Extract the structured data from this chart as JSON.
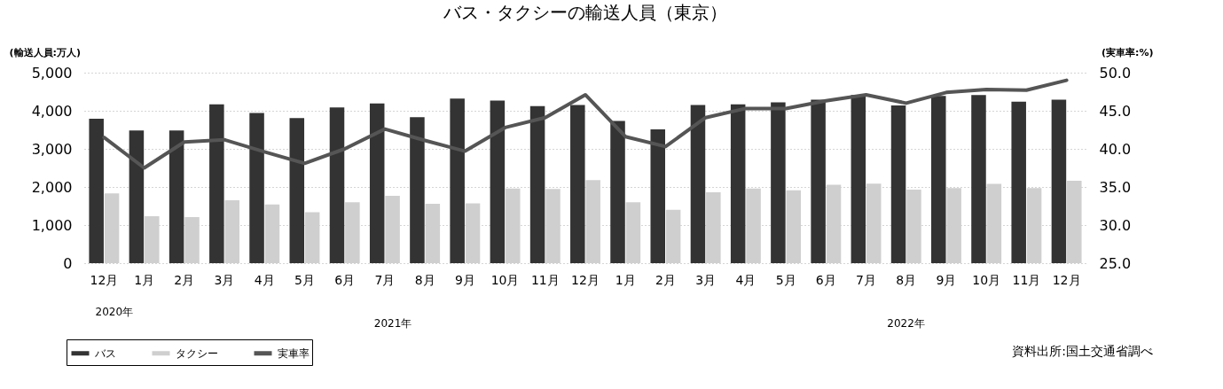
{
  "chart_data": {
    "type": "bar",
    "title": "バス・タクシーの輸送人員（東京）",
    "ylabel": "(輸送人員:万人)",
    "y2label": "(実車率:%)",
    "categories": [
      "12月",
      "1月",
      "2月",
      "3月",
      "4月",
      "5月",
      "6月",
      "7月",
      "8月",
      "9月",
      "10月",
      "11月",
      "12月",
      "1月",
      "2月",
      "3月",
      "4月",
      "5月",
      "6月",
      "7月",
      "8月",
      "9月",
      "10月",
      "11月",
      "12月"
    ],
    "series": [
      {
        "name": "バス",
        "color": "#333333",
        "values": [
          3790,
          3480,
          3480,
          4170,
          3940,
          3810,
          4090,
          4190,
          3830,
          4320,
          4270,
          4120,
          4150,
          3730,
          3510,
          4150,
          4170,
          4220,
          4290,
          4410,
          4140,
          4390,
          4410,
          4240,
          4290
        ]
      },
      {
        "name": "タクシー",
        "color": "#cfcfcf",
        "values": [
          1830,
          1230,
          1210,
          1650,
          1540,
          1340,
          1600,
          1770,
          1560,
          1570,
          1960,
          1950,
          2180,
          1600,
          1400,
          1860,
          1960,
          1910,
          2060,
          2090,
          1930,
          1970,
          2080,
          1970,
          2160
        ]
      },
      {
        "name": "実車率",
        "type": "line",
        "axis": "y2",
        "color": "#555555",
        "values": [
          41.5,
          37.5,
          40.9,
          41.2,
          39.6,
          38.1,
          40.0,
          42.6,
          41.1,
          39.7,
          42.8,
          44.1,
          47.1,
          41.6,
          40.3,
          44.1,
          45.3,
          45.3,
          46.3,
          47.1,
          46.0,
          47.4,
          47.8,
          47.7,
          49.0
        ]
      }
    ],
    "ylim": [
      0,
      5000
    ],
    "yticks": [
      0,
      {
        "value": 1000,
        "label": "1,000"
      },
      {
        "value": 2000,
        "label": "2,000"
      },
      {
        "value": 3000,
        "label": "3,000"
      },
      {
        "value": 4000,
        "label": "4,000"
      },
      {
        "value": 5000,
        "label": "5,000"
      }
    ],
    "y2lim": [
      25,
      50
    ],
    "y2ticks": [
      {
        "value": 25,
        "label": "25.0"
      },
      {
        "value": 30,
        "label": "30.0"
      },
      {
        "value": 35,
        "label": "35.0"
      },
      {
        "value": 40,
        "label": "40.0"
      },
      {
        "value": 45,
        "label": "45.0"
      },
      {
        "value": 50,
        "label": "50.0"
      }
    ],
    "grid": "y",
    "legend": "bottom left",
    "annotations": [
      "2020年",
      "2021年",
      "2022年",
      "資料出所:国土交通省調べ"
    ]
  }
}
